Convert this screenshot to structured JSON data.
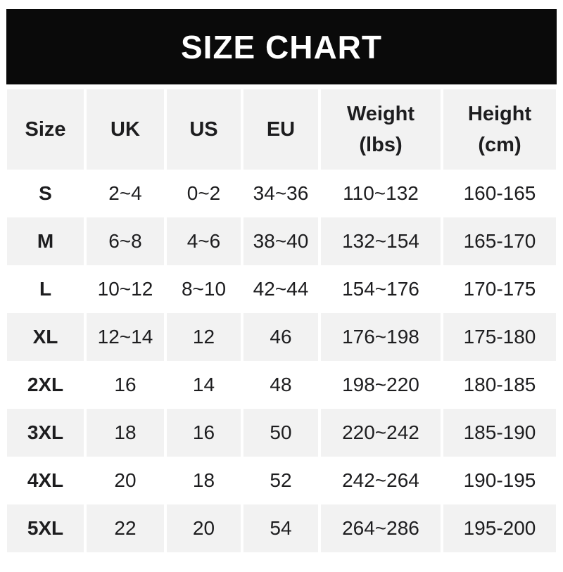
{
  "banner": {
    "title_ref": "see chart_data.title"
  },
  "colors": {
    "banner_bg": "#0a0a0a",
    "banner_text": "#ffffff",
    "alt_row_bg": "#f2f2f2",
    "row_bg": "#ffffff",
    "text": "#1d1d1f"
  },
  "chart_data": {
    "type": "table",
    "title": "SIZE CHART",
    "columns": [
      "Size",
      "UK",
      "US",
      "EU",
      "Weight (lbs)",
      "Height (cm)"
    ],
    "header_lines": [
      [
        "Size"
      ],
      [
        "UK"
      ],
      [
        "US"
      ],
      [
        "EU"
      ],
      [
        "Weight",
        "(lbs)"
      ],
      [
        "Height",
        "(cm)"
      ]
    ],
    "rows": [
      [
        "S",
        "2~4",
        "0~2",
        "34~36",
        "110~132",
        "160-165"
      ],
      [
        "M",
        "6~8",
        "4~6",
        "38~40",
        "132~154",
        "165-170"
      ],
      [
        "L",
        "10~12",
        "8~10",
        "42~44",
        "154~176",
        "170-175"
      ],
      [
        "XL",
        "12~14",
        "12",
        "46",
        "176~198",
        "175-180"
      ],
      [
        "2XL",
        "16",
        "14",
        "48",
        "198~220",
        "180-185"
      ],
      [
        "3XL",
        "18",
        "16",
        "50",
        "220~242",
        "185-190"
      ],
      [
        "4XL",
        "20",
        "18",
        "52",
        "242~264",
        "190-195"
      ],
      [
        "5XL",
        "22",
        "20",
        "54",
        "264~286",
        "195-200"
      ]
    ],
    "layout": {
      "striping": "header and even data rows (M, XL, 3XL, 5XL) light gray; others white",
      "range_separator_body": "~",
      "range_separator_height": "-"
    }
  }
}
